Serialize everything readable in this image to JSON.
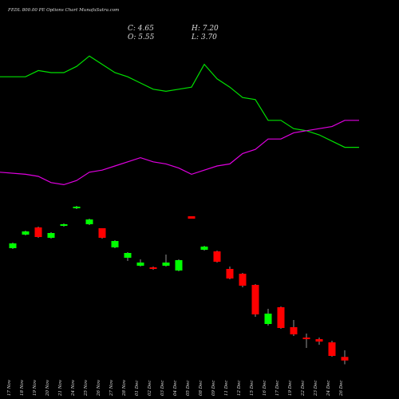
{
  "chart_data": {
    "type": "candlestick",
    "title": "FEDL 800.00 PE Options Chart MunafaSutra.com",
    "annotations": [
      "C: 4.65",
      "H: 7.20",
      "O: 5.55",
      "L: 3.70"
    ],
    "categories": [
      "17 Nov",
      "18 Nov",
      "19 Nov",
      "20 Nov",
      "21 Nov",
      "24 Nov",
      "25 Nov",
      "26 Nov",
      "27 Nov",
      "28 Nov",
      "01 Dec",
      "02 Dec",
      "03 Dec",
      "04 Dec",
      "05 Dec",
      "08 Dec",
      "09 Dec",
      "11 Dec",
      "12 Dec",
      "15 Dec",
      "16 Dec",
      "17 Dec",
      "19 Dec",
      "22 Dec",
      "23 Dec",
      "24 Dec",
      "26 Dec"
    ],
    "open": [
      32.8,
      36.2,
      38,
      35.4,
      38.4,
      42.8,
      38.8,
      37.8,
      33,
      30.4,
      28.4,
      28,
      28.4,
      27.2,
      40.8,
      32.4,
      32,
      27.6,
      26.4,
      23.6,
      13.8,
      18,
      13,
      10.4,
      10,
      9.2,
      5.55
    ],
    "high": [
      34.2,
      37.2,
      38.2,
      36.8,
      39,
      43.4,
      40.2,
      37.8,
      34.8,
      31.8,
      30,
      28.2,
      31.2,
      30,
      40.8,
      33.4,
      32.2,
      28.2,
      26.6,
      23.8,
      17.6,
      18.2,
      14.8,
      11.4,
      10.4,
      9.6,
      7.2
    ],
    "low": [
      32.6,
      36,
      35.4,
      35.2,
      38.2,
      42.6,
      38.6,
      35.2,
      32.8,
      29.6,
      28.2,
      27.4,
      28.2,
      27,
      40.2,
      32.2,
      29.2,
      25,
      23,
      15.6,
      13.4,
      12.6,
      10.8,
      7.8,
      8.6,
      5.6,
      3.7
    ],
    "close": [
      34,
      37,
      35.6,
      36.6,
      38.8,
      43.2,
      40,
      35.4,
      34.6,
      31.6,
      29.2,
      27.6,
      29.2,
      29.8,
      40.2,
      33.2,
      29.4,
      25.2,
      23.4,
      16.2,
      16.4,
      12.8,
      11.2,
      10,
      9.4,
      5.8,
      4.65
    ],
    "up_color": "#00ff00",
    "down_color": "#ff0000",
    "ylim": [
      0,
      95
    ],
    "series": [
      {
        "color": "#00e000",
        "axis": "y2",
        "values": [
          63,
          63,
          66,
          65,
          65,
          68,
          73,
          69,
          65,
          63,
          60,
          57,
          56,
          57,
          58,
          69,
          62,
          58,
          53,
          52,
          42,
          42,
          38,
          37,
          35,
          32,
          29
        ]
      },
      {
        "color": "#e000e0",
        "axis": "y2",
        "values": [
          17,
          16,
          15,
          12,
          11,
          13,
          17,
          18,
          20,
          22,
          24,
          22,
          21,
          19,
          16,
          18,
          20,
          21,
          26,
          28,
          33,
          33,
          36,
          37,
          38,
          39,
          42
        ]
      }
    ],
    "y2lim": [
      0,
      100
    ]
  }
}
